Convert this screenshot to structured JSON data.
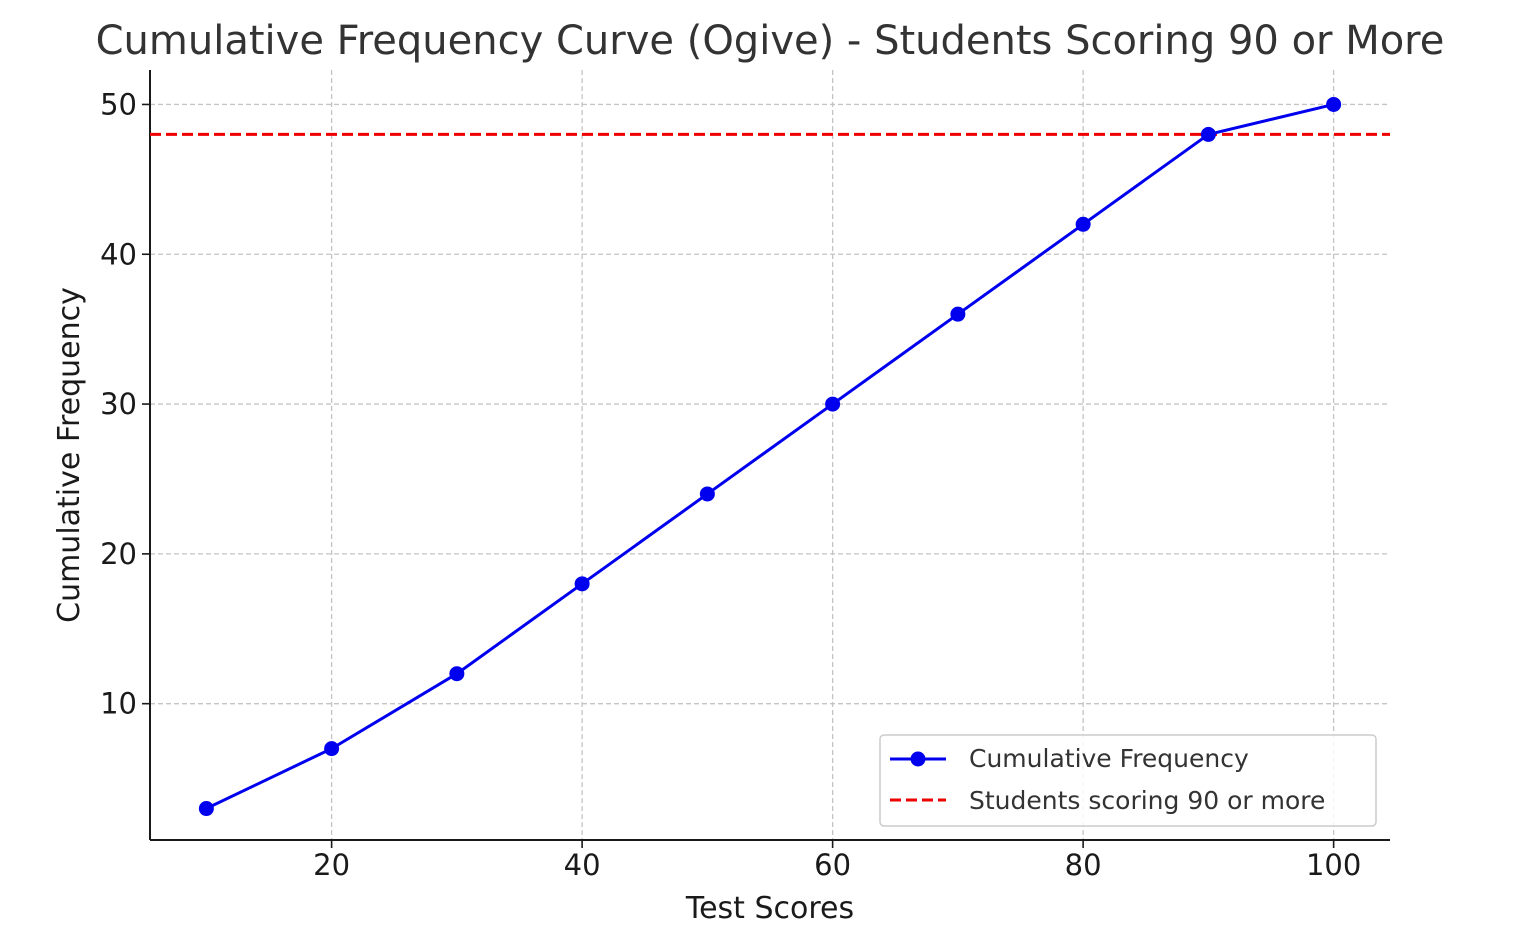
{
  "chart_data": {
    "type": "line",
    "title": "Cumulative Frequency Curve (Ogive) - Students Scoring 90 or More",
    "xlabel": "Test Scores",
    "ylabel": "Cumulative Frequency",
    "x": [
      10,
      20,
      30,
      40,
      50,
      60,
      70,
      80,
      90,
      100
    ],
    "series": [
      {
        "name": "Cumulative Frequency",
        "values": [
          3,
          7,
          12,
          18,
          24,
          30,
          36,
          42,
          48,
          50
        ],
        "color": "#0000ee",
        "marker": "circle",
        "line_style": "solid"
      }
    ],
    "reference_lines": [
      {
        "name": "Students scoring 90 or more",
        "orientation": "horizontal",
        "y": 48,
        "color": "#ee0000",
        "line_style": "dashed"
      }
    ],
    "xlim": [
      5.5,
      104.5
    ],
    "ylim": [
      0.9,
      52.3
    ],
    "xticks": [
      "20",
      "40",
      "60",
      "80",
      "100"
    ],
    "yticks": [
      "10",
      "20",
      "30",
      "40",
      "50"
    ],
    "grid": true,
    "legend_position": "lower-right"
  }
}
